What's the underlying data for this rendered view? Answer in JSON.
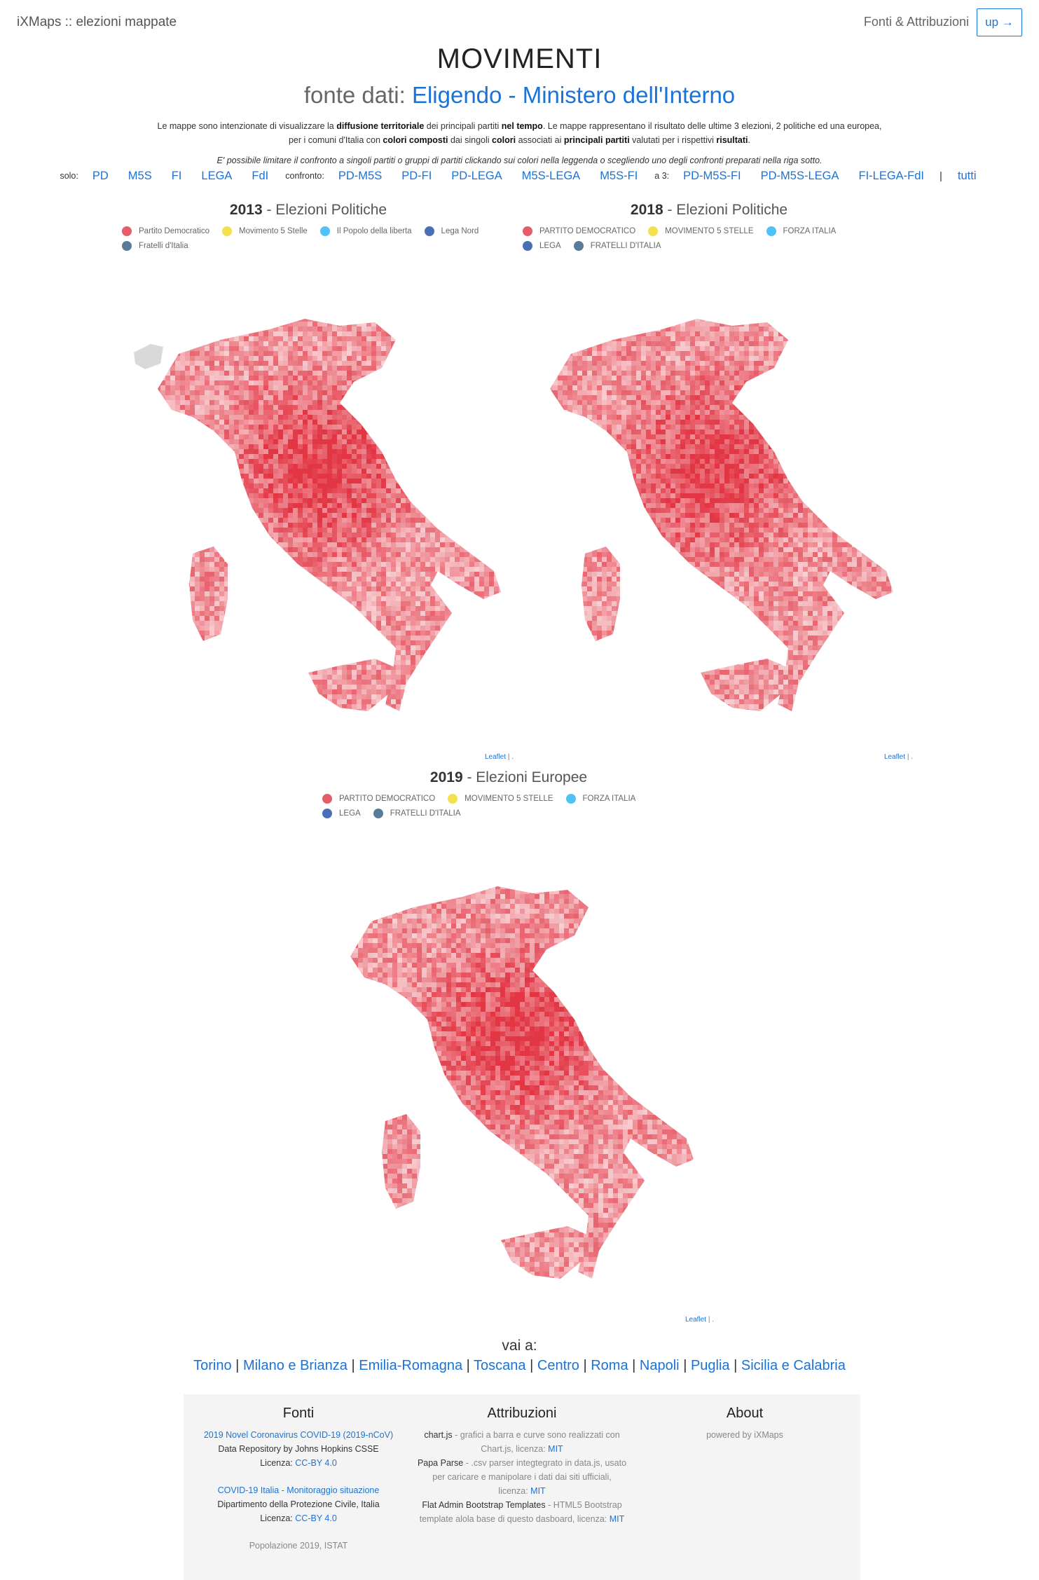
{
  "nav": {
    "brand": "iXMaps :: elezioni mappate",
    "fonti": "Fonti & Attribuzioni",
    "up": "up →"
  },
  "header": {
    "title": "MOVIMENTI",
    "subtitle_prefix": "fonte dati:",
    "subtitle_link": "Eligendo - Ministero dell'Interno"
  },
  "description": {
    "p1": "Le mappe sono intenzionate di visualizzare la",
    "b1": "diffusione territoriale",
    "p2": "dei principali partiti",
    "b2": "nel tempo",
    "p3": ". Le mappe rappresentano il risultato delle ultime 3 elezioni, 2 politiche ed una europea, per i comuni d'Italia con",
    "b3": "colori composti",
    "p4": "dai singoli",
    "b4": "colori",
    "p5": "associati ai",
    "b5": "principali partiti",
    "p6": "valutati per i rispettivi",
    "b6": "risultati",
    "p7": ".",
    "note": "E' possibile limitare il confronto a singoli partiti o gruppi di partiti clickando sui colori nella leggenda o scegliendo uno degli confronti preparati nella riga sotto."
  },
  "filters": {
    "solo_label": "solo:",
    "solo": [
      "PD",
      "M5S",
      "FI",
      "LEGA",
      "FdI"
    ],
    "confronto_label": "confronto:",
    "confronto": [
      "PD-M5S",
      "PD-FI",
      "PD-LEGA",
      "M5S-LEGA",
      "M5S-FI"
    ],
    "a3_label": "a 3:",
    "a3": [
      "PD-M5S-FI",
      "PD-M5S-LEGA",
      "FI-LEGA-FdI"
    ],
    "sep": "|",
    "all": "tutti"
  },
  "maps": [
    {
      "year": "2013",
      "title": "- Elezioni Politiche",
      "legend": [
        {
          "label": "Partito Democratico",
          "color": "#e35d6a"
        },
        {
          "label": "Movimento 5 Stelle",
          "color": "#f4e04d"
        },
        {
          "label": "Il Popolo della liberta",
          "color": "#4fc3f7"
        },
        {
          "label": "Lega Nord",
          "color": "#4a6fb5"
        },
        {
          "label": "Fratelli d'Italia",
          "color": "#5b7b9a"
        }
      ],
      "attribution": "Leaflet",
      "attribution_sep": "| ."
    },
    {
      "year": "2018",
      "title": "- Elezioni Politiche",
      "legend": [
        {
          "label": "PARTITO DEMOCRATICO",
          "color": "#e35d6a"
        },
        {
          "label": "MOVIMENTO 5 STELLE",
          "color": "#f4e04d"
        },
        {
          "label": "FORZA ITALIA",
          "color": "#4fc3f7"
        },
        {
          "label": "LEGA",
          "color": "#4a6fb5"
        },
        {
          "label": "FRATELLI D'ITALIA",
          "color": "#5b7b9a"
        }
      ],
      "attribution": "Leaflet",
      "attribution_sep": "| ."
    },
    {
      "year": "2019",
      "title": "- Elezioni Europee",
      "legend": [
        {
          "label": "PARTITO DEMOCRATICO",
          "color": "#e35d6a"
        },
        {
          "label": "MOVIMENTO 5 STELLE",
          "color": "#f4e04d"
        },
        {
          "label": "FORZA ITALIA",
          "color": "#4fc3f7"
        },
        {
          "label": "LEGA",
          "color": "#4a6fb5"
        },
        {
          "label": "FRATELLI D'ITALIA",
          "color": "#5b7b9a"
        }
      ],
      "attribution": "Leaflet",
      "attribution_sep": "| ."
    }
  ],
  "vai": {
    "title": "vai a:",
    "links": [
      "Torino",
      "Milano e Brianza",
      "Emilia-Romagna",
      "Toscana",
      "Centro",
      "Roma",
      "Napoli",
      "Puglia",
      "Sicilia e Calabria"
    ],
    "sep": "|"
  },
  "footer": {
    "fonti": {
      "title": "Fonti",
      "s1_link": "2019 Novel Coronavirus COVID-19 (2019-nCoV)",
      "s1_line": "Data Repository by Johns Hopkins CSSE",
      "s1_lic": "Licenza:",
      "s1_lic_link": "CC-BY 4.0",
      "s2_link": "COVID-19 Italia - Monitoraggio situazione",
      "s2_line": "Dipartimento della Protezione Civile, Italia",
      "s2_lic": "Licenza:",
      "s2_lic_link": "CC-BY 4.0",
      "s3": "Popolazione 2019, ISTAT"
    },
    "attribuzioni": {
      "title": "Attribuzioni",
      "a1_name": "chart.js",
      "a1_text": "- grafici a barra e curve sono realizzati con Chart.js, licenza:",
      "a1_lic": "MIT",
      "a2_name": "Papa Parse",
      "a2_text": "- .csv parser integtegrato in data.js, usato per caricare e manipolare i dati dai siti ufficiali, licenza:",
      "a2_lic": "MIT",
      "a3_name": "Flat Admin Bootstrap Templates",
      "a3_text": "- HTML5 Bootstrap template alola base di questo dasboard, licenza:",
      "a3_lic": "MIT"
    },
    "about": {
      "title": "About",
      "text": "powered by iXMaps"
    }
  }
}
